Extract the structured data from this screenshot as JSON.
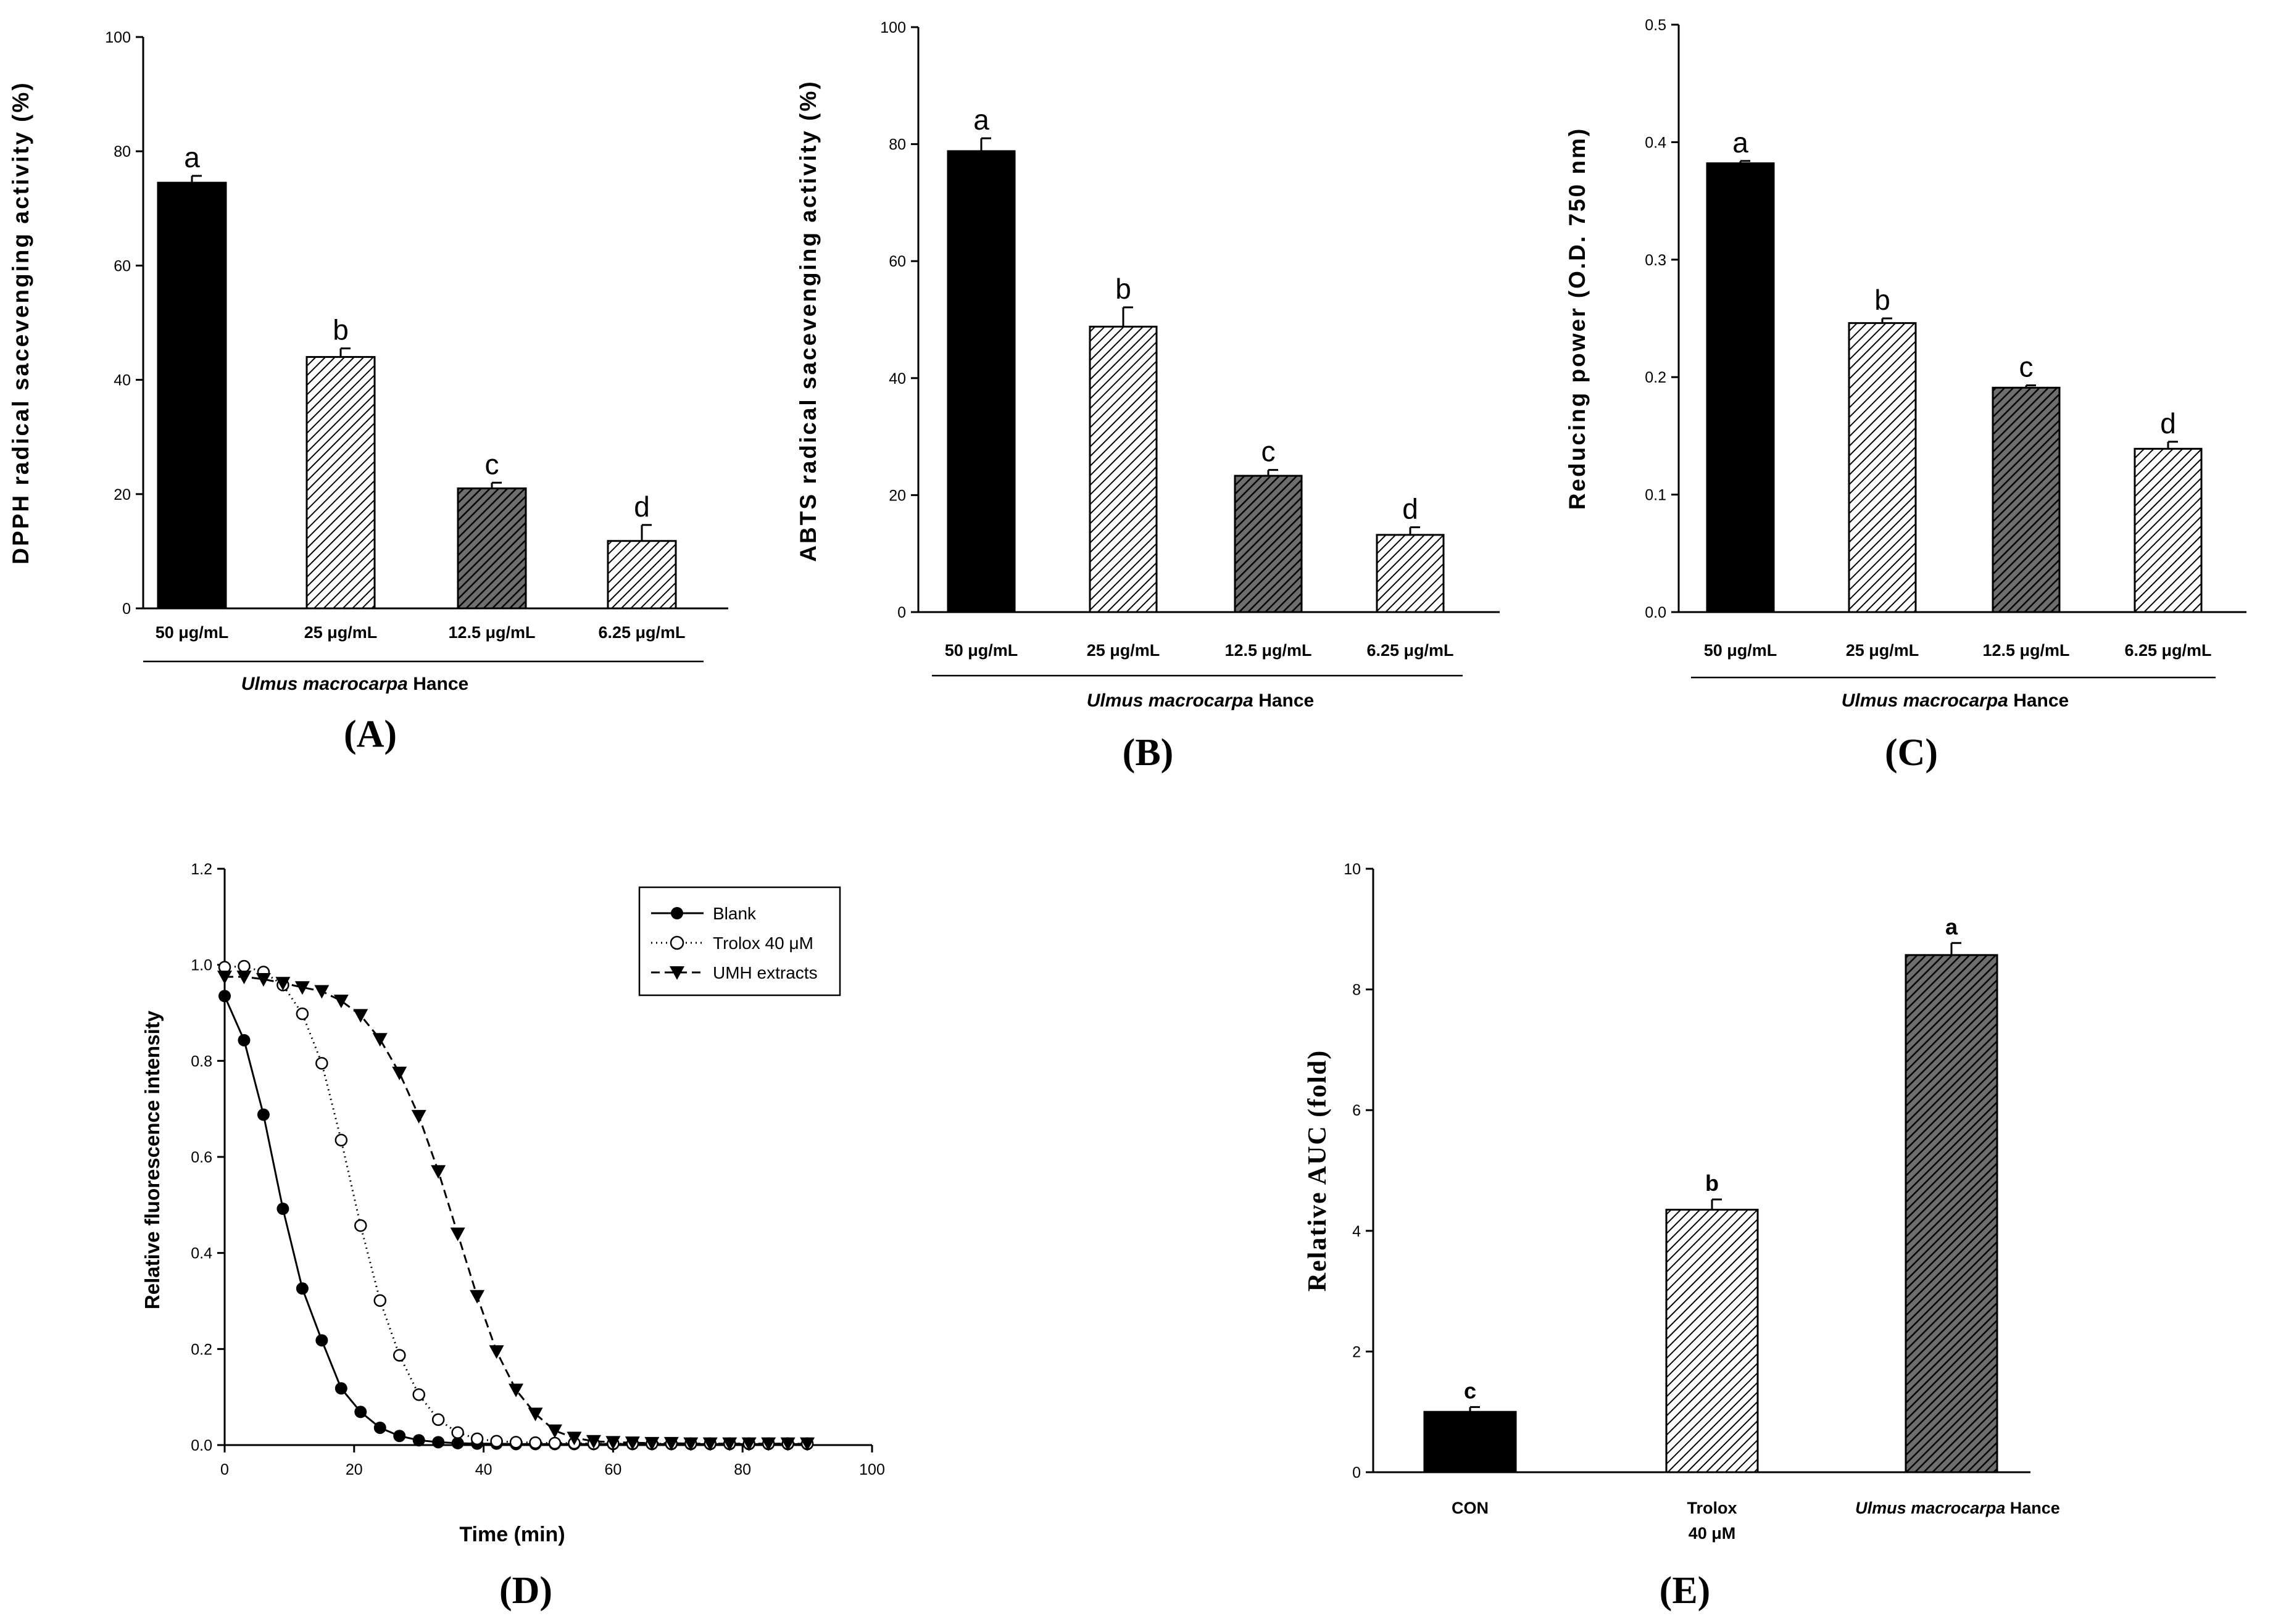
{
  "chart_data": [
    {
      "type": "bar",
      "panel": "(A)",
      "ylabel": "DPPH radical sacevenging activity (%)",
      "ylim": [
        0,
        100
      ],
      "yticks": [
        0,
        20,
        40,
        60,
        80,
        100
      ],
      "categories": [
        "50 μg/mL",
        "25 μg/mL",
        "12.5 μg/mL",
        "6.25 μg/mL"
      ],
      "values": [
        74.5,
        44.0,
        21.0,
        11.8
      ],
      "errors": [
        1.2,
        1.5,
        1.0,
        2.8
      ],
      "letters": [
        "a",
        "b",
        "c",
        "d"
      ],
      "fills": [
        "solid",
        "hatch",
        "hatch-dark",
        "hatch"
      ],
      "group_label": {
        "italic": "Ulmus macrocarpa",
        "plain": " Hance"
      }
    },
    {
      "type": "bar",
      "panel": "(B)",
      "ylabel": "ABTS radical sacevenging activity (%)",
      "ylim": [
        0,
        100
      ],
      "yticks": [
        0,
        20,
        40,
        60,
        80,
        100
      ],
      "categories": [
        "50 μg/mL",
        "25 μg/mL",
        "12.5 μg/mL",
        "6.25 μg/mL"
      ],
      "values": [
        78.8,
        48.8,
        23.3,
        13.2
      ],
      "errors": [
        2.2,
        3.3,
        1.0,
        1.3
      ],
      "letters": [
        "a",
        "b",
        "c",
        "d"
      ],
      "fills": [
        "solid",
        "hatch",
        "hatch-dark",
        "hatch"
      ],
      "group_label": {
        "italic": "Ulmus macrocarpa",
        "plain": " Hance"
      }
    },
    {
      "type": "bar",
      "panel": "(C)",
      "ylabel": "Reducing power (O.D. 750 nm)",
      "ylim": [
        0,
        0.5
      ],
      "yticks": [
        "0.0",
        "0.1",
        "0.2",
        "0.3",
        "0.4",
        "0.5"
      ],
      "categories": [
        "50 μg/mL",
        "25 μg/mL",
        "12.5 μg/mL",
        "6.25 μg/mL"
      ],
      "values": [
        0.382,
        0.246,
        0.191,
        0.139
      ],
      "errors": [
        0.002,
        0.004,
        0.002,
        0.006
      ],
      "letters": [
        "a",
        "b",
        "c",
        "d"
      ],
      "fills": [
        "solid",
        "hatch",
        "hatch-dark",
        "hatch"
      ],
      "group_label": {
        "italic": "Ulmus macrocarpa",
        "plain": " Hance"
      }
    },
    {
      "type": "line",
      "panel": "(D)",
      "xlabel": "Time (min)",
      "ylabel": "Relative fluorescence intensity",
      "xlim": [
        0,
        100
      ],
      "ylim": [
        0,
        1.2
      ],
      "xticks": [
        0,
        20,
        40,
        60,
        80,
        100
      ],
      "yticks": [
        "0.0",
        "0.2",
        "0.4",
        "0.6",
        "0.8",
        "1.0",
        "1.2"
      ],
      "x": [
        0,
        3,
        6,
        9,
        12,
        15,
        18,
        21,
        24,
        27,
        30,
        33,
        36,
        39,
        42,
        45,
        48,
        51,
        54,
        57,
        60,
        63,
        66,
        69,
        72,
        75,
        78,
        81,
        84,
        87,
        90
      ],
      "series": [
        {
          "name": "Blank",
          "marker": "filled-circle",
          "line": "solid",
          "values": [
            0.935,
            0.843,
            0.688,
            0.492,
            0.326,
            0.218,
            0.118,
            0.069,
            0.036,
            0.019,
            0.01,
            0.006,
            0.004,
            0.003,
            0.003,
            0.002,
            0.002,
            0.002,
            0.002,
            0.002,
            0.002,
            0.002,
            0.002,
            0.002,
            0.002,
            0.002,
            0.002,
            0.002,
            0.002,
            0.002,
            0.002
          ]
        },
        {
          "name": "Trolox 40 μM",
          "marker": "open-circle",
          "line": "dotted",
          "values": [
            0.995,
            0.997,
            0.985,
            0.958,
            0.898,
            0.795,
            0.635,
            0.457,
            0.301,
            0.187,
            0.105,
            0.053,
            0.026,
            0.013,
            0.008,
            0.006,
            0.005,
            0.004,
            0.004,
            0.003,
            0.003,
            0.003,
            0.003,
            0.003,
            0.003,
            0.003,
            0.003,
            0.003,
            0.003,
            0.003,
            0.003
          ]
        },
        {
          "name": "UMH extracts",
          "marker": "filled-triangle-down",
          "line": "dashed",
          "values": [
            0.975,
            0.975,
            0.97,
            0.962,
            0.953,
            0.945,
            0.925,
            0.895,
            0.845,
            0.775,
            0.685,
            0.57,
            0.44,
            0.31,
            0.195,
            0.115,
            0.065,
            0.03,
            0.015,
            0.008,
            0.006,
            0.005,
            0.004,
            0.004,
            0.003,
            0.003,
            0.003,
            0.003,
            0.003,
            0.003,
            0.003
          ]
        }
      ],
      "legend_position": "top-right"
    },
    {
      "type": "bar",
      "panel": "(E)",
      "ylabel": "Relative AUC (fold)",
      "ylim": [
        0,
        10
      ],
      "yticks": [
        0,
        2,
        4,
        6,
        8,
        10
      ],
      "categories": [
        "CON",
        "Trolox\n40 μM",
        "Ulmus macrocarpa Hance"
      ],
      "values": [
        1.0,
        4.35,
        8.57
      ],
      "errors": [
        0.08,
        0.17,
        0.2
      ],
      "letters": [
        "c",
        "b",
        "a"
      ],
      "fills": [
        "solid",
        "hatch",
        "hatch-dark"
      ]
    }
  ],
  "labels": {
    "panel_a": "(A)",
    "panel_b": "(B)",
    "panel_c": "(C)",
    "panel_d": "(D)",
    "panel_e": "(E)",
    "d_xlabel": "Time (min)",
    "legend_blank": "Blank",
    "legend_trolox": "Trolox 40 μM",
    "legend_umh": "UMH extracts",
    "e_cat_con": "CON",
    "e_cat_trolox_line1": "Trolox",
    "e_cat_trolox_line2": "40 μM",
    "e_cat_umh_italic": "Ulmus macrocarpa",
    "e_cat_umh_plain": " Hance"
  }
}
